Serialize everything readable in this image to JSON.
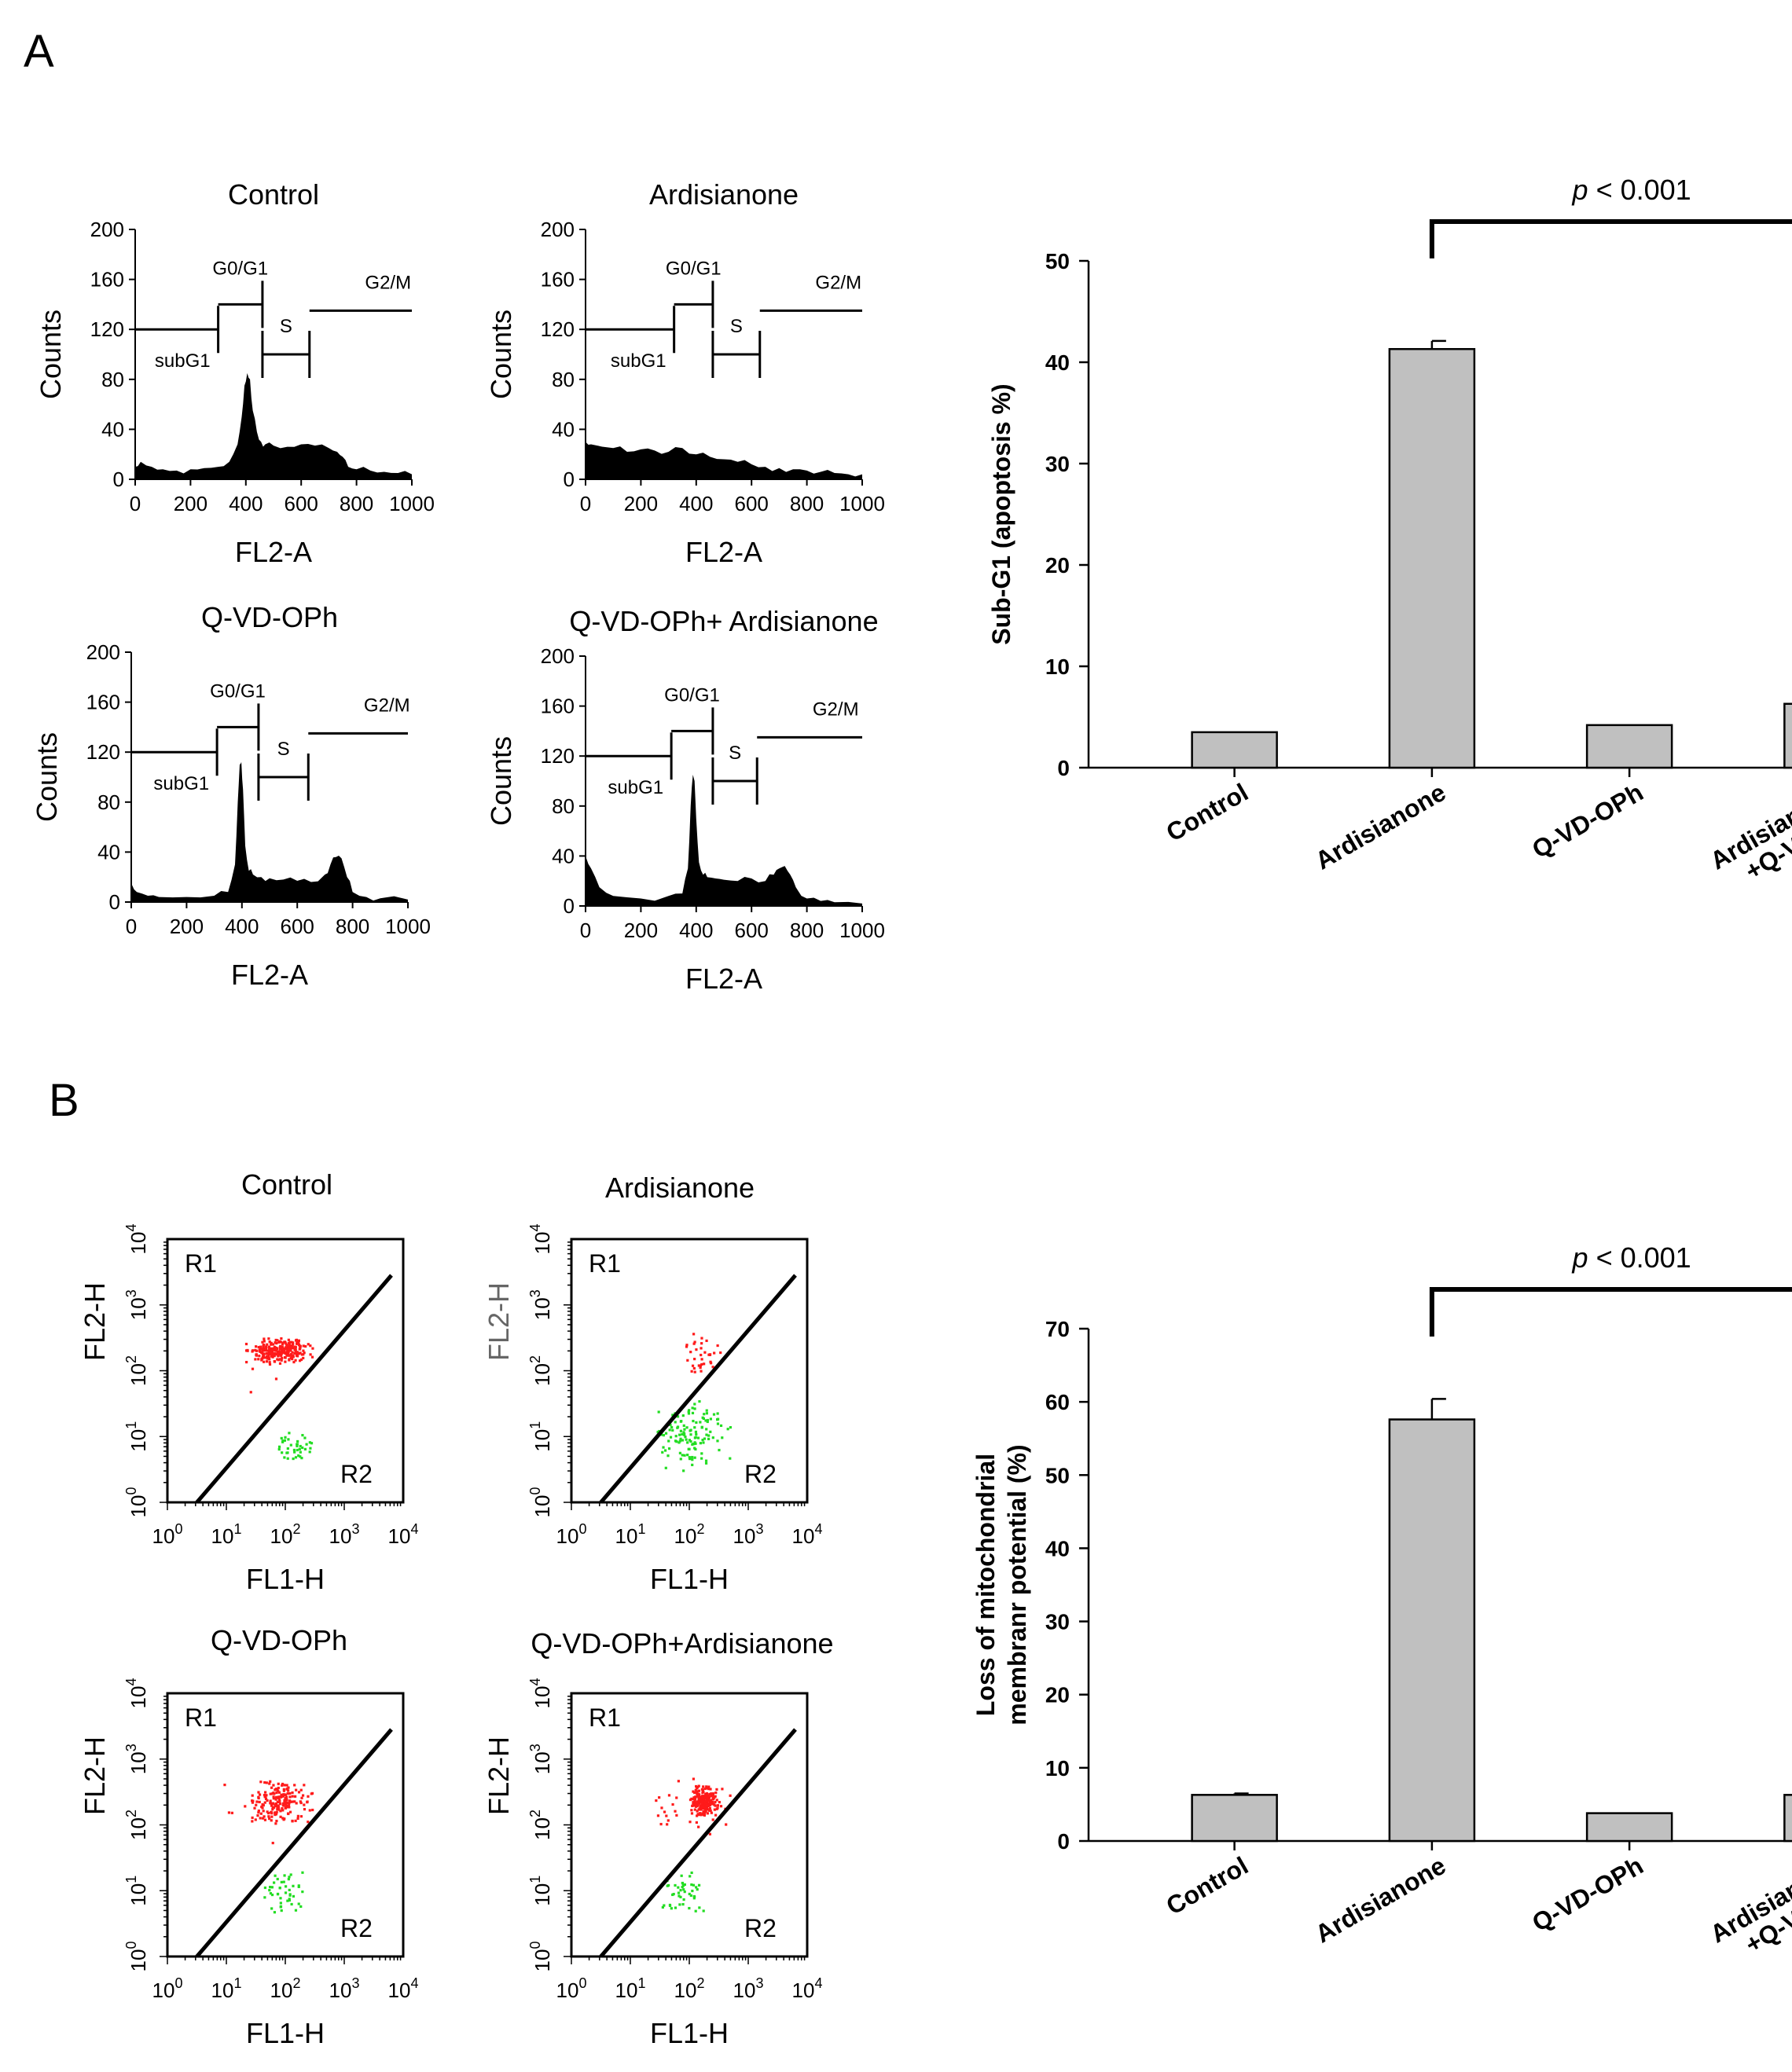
{
  "figure": {
    "panel_a_label": "A",
    "panel_b_label": "B"
  },
  "chart_data": [
    {
      "type": "histogram",
      "id": "hist-control",
      "title": "Control",
      "xlabel": "FL2-A",
      "ylabel": "Counts",
      "xlim": [
        0,
        1000
      ],
      "ylim": [
        0,
        200
      ],
      "xticks": [
        "0",
        "200",
        "400",
        "600",
        "800",
        "1000"
      ],
      "yticks": [
        "0",
        "40",
        "80",
        "120",
        "160",
        "200"
      ],
      "gate_labels": {
        "sub": "subG1",
        "g0": "G0/G1",
        "s": "S",
        "g2": "G2/M"
      },
      "gates": {
        "sub_end": 300,
        "g0_end": 460,
        "s_end": 630,
        "x_max": 1000
      },
      "x": [
        0,
        20,
        60,
        100,
        150,
        200,
        250,
        300,
        340,
        370,
        385,
        395,
        405,
        415,
        425,
        440,
        455,
        470,
        500,
        550,
        600,
        650,
        700,
        730,
        750,
        770,
        800,
        850,
        900,
        950,
        1000
      ],
      "counts": [
        10,
        14,
        10,
        8,
        7,
        8,
        9,
        10,
        14,
        28,
        50,
        75,
        85,
        80,
        55,
        38,
        30,
        28,
        27,
        26,
        28,
        27,
        25,
        22,
        18,
        10,
        8,
        7,
        6,
        5,
        4
      ]
    },
    {
      "type": "histogram",
      "id": "hist-ardisianone",
      "title": "Ardisianone",
      "xlabel": "FL2-A",
      "ylabel": "Counts",
      "xlim": [
        0,
        1000
      ],
      "ylim": [
        0,
        200
      ],
      "xticks": [
        "0",
        "200",
        "400",
        "600",
        "800",
        "1000"
      ],
      "yticks": [
        "0",
        "40",
        "80",
        "120",
        "160",
        "200"
      ],
      "gate_labels": {
        "sub": "subG1",
        "g0": "G0/G1",
        "s": "S",
        "g2": "G2/M"
      },
      "gates": {
        "sub_end": 320,
        "g0_end": 460,
        "s_end": 630,
        "x_max": 1000
      },
      "x": [
        0,
        20,
        100,
        150,
        200,
        250,
        300,
        350,
        400,
        450,
        500,
        550,
        600,
        650,
        700,
        750,
        800,
        850,
        900,
        950,
        1000
      ],
      "counts": [
        30,
        28,
        25,
        22,
        24,
        23,
        22,
        25,
        20,
        18,
        16,
        14,
        12,
        10,
        9,
        8,
        7,
        6,
        5,
        4,
        4
      ]
    },
    {
      "type": "histogram",
      "id": "hist-qvd",
      "title": "Q-VD-OPh",
      "xlabel": "FL2-A",
      "ylabel": "Counts",
      "xlim": [
        0,
        1000
      ],
      "ylim": [
        0,
        200
      ],
      "xticks": [
        "0",
        "200",
        "400",
        "600",
        "800",
        "1000"
      ],
      "yticks": [
        "0",
        "40",
        "80",
        "120",
        "160",
        "200"
      ],
      "gate_labels": {
        "sub": "subG1",
        "g0": "G0/G1",
        "s": "S",
        "g2": "G2/M"
      },
      "gates": {
        "sub_end": 310,
        "g0_end": 460,
        "s_end": 640,
        "x_max": 1000
      },
      "x": [
        0,
        20,
        60,
        100,
        200,
        300,
        350,
        375,
        385,
        392,
        398,
        404,
        412,
        425,
        440,
        470,
        500,
        550,
        600,
        650,
        700,
        720,
        740,
        760,
        780,
        800,
        850,
        900,
        1000
      ],
      "counts": [
        15,
        8,
        5,
        4,
        4,
        5,
        8,
        30,
        80,
        110,
        112,
        90,
        45,
        25,
        22,
        20,
        19,
        18,
        17,
        16,
        22,
        30,
        36,
        35,
        20,
        8,
        4,
        3,
        2
      ]
    },
    {
      "type": "histogram",
      "id": "hist-qvd-ard",
      "title": "Q-VD-OPh+ Ardisianone",
      "xlabel": "FL2-A",
      "ylabel": "Counts",
      "xlim": [
        0,
        1000
      ],
      "ylim": [
        0,
        200
      ],
      "xticks": [
        "0",
        "200",
        "400",
        "600",
        "800",
        "1000"
      ],
      "yticks": [
        "0",
        "40",
        "80",
        "120",
        "160",
        "200"
      ],
      "gate_labels": {
        "sub": "subG1",
        "g0": "G0/G1",
        "s": "S",
        "g2": "G2/M"
      },
      "gates": {
        "sub_end": 310,
        "g0_end": 460,
        "s_end": 620,
        "x_max": 1000
      },
      "x": [
        0,
        20,
        50,
        100,
        200,
        300,
        350,
        370,
        380,
        388,
        394,
        400,
        410,
        425,
        440,
        470,
        500,
        550,
        600,
        650,
        680,
        700,
        720,
        740,
        760,
        800,
        850,
        900,
        1000
      ],
      "counts": [
        40,
        30,
        15,
        8,
        6,
        8,
        10,
        30,
        80,
        105,
        100,
        70,
        35,
        25,
        23,
        22,
        21,
        20,
        22,
        20,
        25,
        30,
        32,
        25,
        15,
        6,
        4,
        3,
        2
      ]
    },
    {
      "type": "bar",
      "id": "bar-subg1",
      "categories": [
        "Control",
        "Ardisianone",
        "Q-VD-OPh",
        "Ardisianone\n+Q-VD-OPh"
      ],
      "values": [
        3.5,
        41.3,
        4.2,
        6.3
      ],
      "errors": [
        0,
        0.8,
        0,
        0
      ],
      "ylabel": "Sub-G1 (apoptosis %)",
      "ylim": [
        0,
        50
      ],
      "yticks": [
        "0",
        "10",
        "20",
        "30",
        "40",
        "50"
      ],
      "annotation": {
        "italic": "p",
        "rest": " < 0.001",
        "from": 1,
        "to": 3
      }
    },
    {
      "type": "scatter",
      "id": "scatter-control",
      "title": "Control",
      "xlabel": "FL1-H",
      "ylabel": "FL2-H",
      "scale": "log",
      "xlim": [
        1,
        10000
      ],
      "ylim": [
        1,
        10000
      ],
      "decades": [
        "0",
        "1",
        "2",
        "3",
        "4"
      ],
      "regions": [
        "R1",
        "R2"
      ],
      "ylabel_color": "#000000",
      "clusters": [
        {
          "color": "#ff1a1a",
          "n": 260,
          "x": [
            1.3,
            2.5
          ],
          "y": [
            2.1,
            2.5
          ],
          "seed": 11
        },
        {
          "color": "#ff1a1a",
          "n": 10,
          "x": [
            0.9,
            2.6
          ],
          "y": [
            1.6,
            2.6
          ],
          "seed": 12
        },
        {
          "color": "#22dd22",
          "n": 40,
          "x": [
            1.8,
            2.5
          ],
          "y": [
            0.6,
            1.1
          ],
          "seed": 13
        }
      ]
    },
    {
      "type": "scatter",
      "id": "scatter-ardisianone",
      "title": "Ardisianone",
      "xlabel": "FL1-H",
      "ylabel": "FL2-H",
      "scale": "log",
      "xlim": [
        1,
        10000
      ],
      "ylim": [
        1,
        10000
      ],
      "decades": [
        "0",
        "1",
        "2",
        "3",
        "4"
      ],
      "regions": [
        "R1",
        "R2"
      ],
      "ylabel_color": "#666666",
      "clusters": [
        {
          "color": "#ff1a1a",
          "n": 35,
          "x": [
            1.8,
            2.6
          ],
          "y": [
            1.9,
            2.7
          ],
          "seed": 21
        },
        {
          "color": "#22dd22",
          "n": 130,
          "x": [
            1.4,
            2.8
          ],
          "y": [
            0.4,
            1.6
          ],
          "seed": 22
        }
      ]
    },
    {
      "type": "scatter",
      "id": "scatter-qvd",
      "title": "Q-VD-OPh",
      "xlabel": "FL1-H",
      "ylabel": "FL2-H",
      "scale": "log",
      "xlim": [
        1,
        10000
      ],
      "ylim": [
        1,
        10000
      ],
      "decades": [
        "0",
        "1",
        "2",
        "3",
        "4"
      ],
      "regions": [
        "R1",
        "R2"
      ],
      "ylabel_color": "#000000",
      "clusters": [
        {
          "color": "#ff1a1a",
          "n": 190,
          "x": [
            1.3,
            2.5
          ],
          "y": [
            2.0,
            2.7
          ],
          "seed": 31
        },
        {
          "color": "#ff1a1a",
          "n": 12,
          "x": [
            0.5,
            2.7
          ],
          "y": [
            1.5,
            2.9
          ],
          "seed": 32
        },
        {
          "color": "#22dd22",
          "n": 45,
          "x": [
            1.6,
            2.4
          ],
          "y": [
            0.6,
            1.4
          ],
          "seed": 33
        }
      ]
    },
    {
      "type": "scatter",
      "id": "scatter-qvd-ard",
      "title": "Q-VD-OPh+Ardisianone",
      "xlabel": "FL1-H",
      "ylabel": "FL2-H",
      "scale": "log",
      "xlim": [
        1,
        10000
      ],
      "ylim": [
        1,
        10000
      ],
      "decades": [
        "0",
        "1",
        "2",
        "3",
        "4"
      ],
      "regions": [
        "R1",
        "R2"
      ],
      "ylabel_color": "#000000",
      "clusters": [
        {
          "color": "#ff1a1a",
          "n": 220,
          "x": [
            2.0,
            2.5
          ],
          "y": [
            2.1,
            2.6
          ],
          "seed": 41
        },
        {
          "color": "#ff1a1a",
          "n": 30,
          "x": [
            1.2,
            2.8
          ],
          "y": [
            1.7,
            2.8
          ],
          "seed": 42
        },
        {
          "color": "#22dd22",
          "n": 45,
          "x": [
            1.5,
            2.3
          ],
          "y": [
            0.6,
            1.3
          ],
          "seed": 43
        }
      ]
    },
    {
      "type": "bar",
      "id": "bar-mmp",
      "categories": [
        "Control",
        "Ardisianone",
        "Q-VD-OPh",
        "Ardisianone\n+Q-VD-OPh"
      ],
      "values": [
        6.3,
        57.6,
        3.8,
        6.3
      ],
      "errors": [
        0.2,
        2.8,
        0,
        0.2
      ],
      "ylabel": "Loss of mitochondrial\nmembranr potential (%)",
      "ylim": [
        0,
        70
      ],
      "yticks": [
        "0",
        "10",
        "20",
        "30",
        "40",
        "50",
        "60",
        "70"
      ],
      "annotation": {
        "italic": "p",
        "rest": " < 0.001",
        "from": 1,
        "to": 3
      }
    }
  ]
}
